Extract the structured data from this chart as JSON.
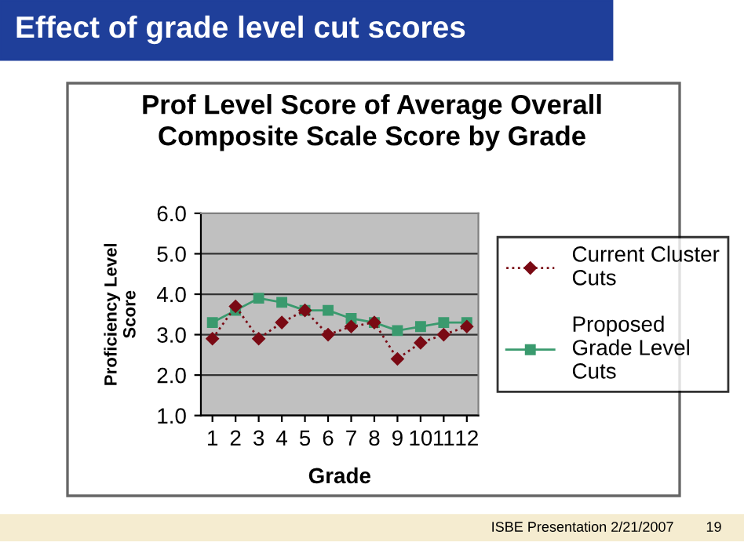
{
  "chart_data": {
    "type": "line",
    "title": "Prof Level Score of Average Overall\nComposite Scale Score by Grade",
    "xlabel": "Grade",
    "ylabel": "Proficiency Level\nScore",
    "categories": [
      "1",
      "2",
      "3",
      "4",
      "5",
      "6",
      "7",
      "8",
      "9",
      "10",
      "11",
      "12"
    ],
    "series": [
      {
        "name": "Current Cluster\nCuts",
        "color": "#7a0a14",
        "marker": "diamond",
        "line_style": "dotted",
        "values": [
          2.9,
          3.7,
          2.9,
          3.3,
          3.6,
          3.0,
          3.2,
          3.3,
          2.4,
          2.8,
          3.0,
          3.2
        ]
      },
      {
        "name": "Proposed\nGrade Level\nCuts",
        "color": "#3a9a6e",
        "marker": "square",
        "line_style": "solid",
        "values": [
          3.3,
          3.6,
          3.9,
          3.8,
          3.6,
          3.6,
          3.4,
          3.3,
          3.1,
          3.2,
          3.3,
          3.3
        ]
      }
    ],
    "ylim": [
      1.0,
      6.0
    ],
    "yticks": [
      {
        "value": 1.0,
        "label": "1.0"
      },
      {
        "value": 2.0,
        "label": "2.0"
      },
      {
        "value": 3.0,
        "label": "3.0"
      },
      {
        "value": 4.0,
        "label": "4.0"
      },
      {
        "value": 5.0,
        "label": "5.0"
      },
      {
        "value": 6.0,
        "label": "6.0"
      }
    ],
    "grid": "y",
    "legend": "right",
    "annotations": [
      "Effect of grade level cut scores",
      "ISBE Presentation 2/21/2007",
      "19"
    ]
  }
}
